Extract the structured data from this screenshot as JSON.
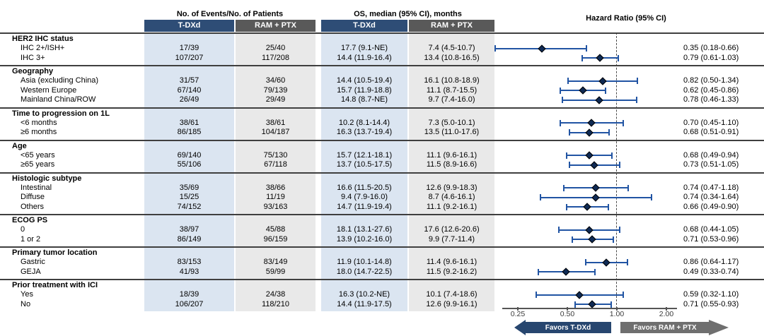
{
  "header": {
    "events_title": "No. of Events/No. of Patients",
    "os_title": "OS, median (95% CI), months",
    "hr_title": "Hazard Ratio (95% CI)",
    "col_tdxd": "T-DXd",
    "col_ram": "RAM + PTX"
  },
  "axis": {
    "ticks": [
      "0.25",
      "0.50",
      "1.00",
      "2.00"
    ],
    "tick_values": [
      0.25,
      0.5,
      1.0,
      2.0
    ],
    "reference_line": 1.0
  },
  "footer": {
    "favors_left": "Favors T-DXd",
    "favors_right": "Favors RAM + PTX"
  },
  "colors": {
    "chip_navy": "#2e4d76",
    "chip_gray": "#595959",
    "band_blue": "#dbe5f1",
    "band_gray": "#e9e9e9",
    "whisker_blue": "#2154a3",
    "diamond_navy": "#0f2a54",
    "arrow_navy": "#27466f",
    "arrow_gray": "#6f6f6f"
  },
  "chart_data": {
    "type": "scatter",
    "chart_kind": "forest-plot",
    "title": "Hazard Ratio (95% CI)",
    "x_scale": "log2",
    "x_ticks": [
      0.25,
      0.5,
      1.0,
      2.0
    ],
    "reference_line": 1.0,
    "legend_position": "none",
    "grid": false,
    "groups": [
      {
        "label": "HER2 IHC status",
        "rows": [
          {
            "label": "IHC 2+/ISH+",
            "events_tdxd": "17/39",
            "events_ram": "25/40",
            "os_tdxd": "17.7 (9.1-NE)",
            "os_ram": "7.4 (4.5-10.7)",
            "hr": 0.35,
            "ci_low": 0.18,
            "ci_high": 0.66,
            "hr_text": "0.35 (0.18-0.66)"
          },
          {
            "label": "IHC 3+",
            "events_tdxd": "107/207",
            "events_ram": "117/208",
            "os_tdxd": "14.4 (11.9-16.4)",
            "os_ram": "13.4 (10.8-16.5)",
            "hr": 0.79,
            "ci_low": 0.61,
            "ci_high": 1.03,
            "hr_text": "0.79 (0.61-1.03)"
          }
        ]
      },
      {
        "label": "Geography",
        "rows": [
          {
            "label": "Asia (excluding China)",
            "events_tdxd": "31/57",
            "events_ram": "34/60",
            "os_tdxd": "14.4 (10.5-19.4)",
            "os_ram": "16.1 (10.8-18.9)",
            "hr": 0.82,
            "ci_low": 0.5,
            "ci_high": 1.34,
            "hr_text": "0.82 (0.50-1.34)"
          },
          {
            "label": "Western Europe",
            "events_tdxd": "67/140",
            "events_ram": "79/139",
            "os_tdxd": "15.7 (11.9-18.8)",
            "os_ram": "11.1 (8.7-15.5)",
            "hr": 0.62,
            "ci_low": 0.45,
            "ci_high": 0.86,
            "hr_text": "0.62 (0.45-0.86)"
          },
          {
            "label": "Mainland China/ROW",
            "events_tdxd": "26/49",
            "events_ram": "29/49",
            "os_tdxd": "14.8 (8.7-NE)",
            "os_ram": "9.7 (7.4-16.0)",
            "hr": 0.78,
            "ci_low": 0.46,
            "ci_high": 1.33,
            "hr_text": "0.78 (0.46-1.33)"
          }
        ]
      },
      {
        "label": "Time to progression on 1L",
        "rows": [
          {
            "label": "<6 months",
            "events_tdxd": "38/61",
            "events_ram": "38/61",
            "os_tdxd": "10.2 (8.1-14.4)",
            "os_ram": "7.3 (5.0-10.1)",
            "hr": 0.7,
            "ci_low": 0.45,
            "ci_high": 1.1,
            "hr_text": "0.70 (0.45-1.10)"
          },
          {
            "label": "≥6 months",
            "events_tdxd": "86/185",
            "events_ram": "104/187",
            "os_tdxd": "16.3 (13.7-19.4)",
            "os_ram": "13.5 (11.0-17.6)",
            "hr": 0.68,
            "ci_low": 0.51,
            "ci_high": 0.91,
            "hr_text": "0.68 (0.51-0.91)"
          }
        ]
      },
      {
        "label": "Age",
        "rows": [
          {
            "label": "<65 years",
            "events_tdxd": "69/140",
            "events_ram": "75/130",
            "os_tdxd": "15.7 (12.1-18.1)",
            "os_ram": "11.1 (9.6-16.1)",
            "hr": 0.68,
            "ci_low": 0.49,
            "ci_high": 0.94,
            "hr_text": "0.68 (0.49-0.94)"
          },
          {
            "label": "≥65 years",
            "events_tdxd": "55/106",
            "events_ram": "67/118",
            "os_tdxd": "13.7 (10.5-17.5)",
            "os_ram": "11.5 (8.9-16.6)",
            "hr": 0.73,
            "ci_low": 0.51,
            "ci_high": 1.05,
            "hr_text": "0.73 (0.51-1.05)"
          }
        ]
      },
      {
        "label": "Histologic subtype",
        "rows": [
          {
            "label": "Intestinal",
            "events_tdxd": "35/69",
            "events_ram": "38/66",
            "os_tdxd": "16.6 (11.5-20.5)",
            "os_ram": "12.6 (9.9-18.3)",
            "hr": 0.74,
            "ci_low": 0.47,
            "ci_high": 1.18,
            "hr_text": "0.74 (0.47-1.18)"
          },
          {
            "label": "Diffuse",
            "events_tdxd": "15/25",
            "events_ram": "11/19",
            "os_tdxd": "9.4 (7.9-16.0)",
            "os_ram": "8.7 (4.6-16.1)",
            "hr": 0.74,
            "ci_low": 0.34,
            "ci_high": 1.64,
            "hr_text": "0.74 (0.34-1.64)"
          },
          {
            "label": "Others",
            "events_tdxd": "74/152",
            "events_ram": "93/163",
            "os_tdxd": "14.7 (11.9-19.4)",
            "os_ram": "11.1 (9.2-16.1)",
            "hr": 0.66,
            "ci_low": 0.49,
            "ci_high": 0.9,
            "hr_text": "0.66 (0.49-0.90)"
          }
        ]
      },
      {
        "label": "ECOG PS",
        "rows": [
          {
            "label": "0",
            "events_tdxd": "38/97",
            "events_ram": "45/88",
            "os_tdxd": "18.1 (13.1-27.6)",
            "os_ram": "17.6 (12.6-20.6)",
            "hr": 0.68,
            "ci_low": 0.44,
            "ci_high": 1.05,
            "hr_text": "0.68 (0.44-1.05)"
          },
          {
            "label": "1 or 2",
            "events_tdxd": "86/149",
            "events_ram": "96/159",
            "os_tdxd": "13.9 (10.2-16.0)",
            "os_ram": "9.9 (7.7-11.4)",
            "hr": 0.71,
            "ci_low": 0.53,
            "ci_high": 0.96,
            "hr_text": "0.71 (0.53-0.96)"
          }
        ]
      },
      {
        "label": "Primary tumor location",
        "rows": [
          {
            "label": "Gastric",
            "events_tdxd": "83/153",
            "events_ram": "83/149",
            "os_tdxd": "11.9 (10.1-14.8)",
            "os_ram": "11.4 (9.6-16.1)",
            "hr": 0.86,
            "ci_low": 0.64,
            "ci_high": 1.17,
            "hr_text": "0.86 (0.64-1.17)"
          },
          {
            "label": "GEJA",
            "events_tdxd": "41/93",
            "events_ram": "59/99",
            "os_tdxd": "18.0 (14.7-22.5)",
            "os_ram": "11.5 (9.2-16.2)",
            "hr": 0.49,
            "ci_low": 0.33,
            "ci_high": 0.74,
            "hr_text": "0.49 (0.33-0.74)"
          }
        ]
      },
      {
        "label": "Prior treatment with ICI",
        "rows": [
          {
            "label": "Yes",
            "events_tdxd": "18/39",
            "events_ram": "24/38",
            "os_tdxd": "16.3 (10.2-NE)",
            "os_ram": "10.1 (7.4-18.6)",
            "hr": 0.59,
            "ci_low": 0.32,
            "ci_high": 1.1,
            "hr_text": "0.59 (0.32-1.10)"
          },
          {
            "label": "No",
            "events_tdxd": "106/207",
            "events_ram": "118/210",
            "os_tdxd": "14.4 (11.9-17.5)",
            "os_ram": "12.6 (9.9-16.1)",
            "hr": 0.71,
            "ci_low": 0.55,
            "ci_high": 0.93,
            "hr_text": "0.71 (0.55-0.93)"
          }
        ]
      }
    ]
  }
}
